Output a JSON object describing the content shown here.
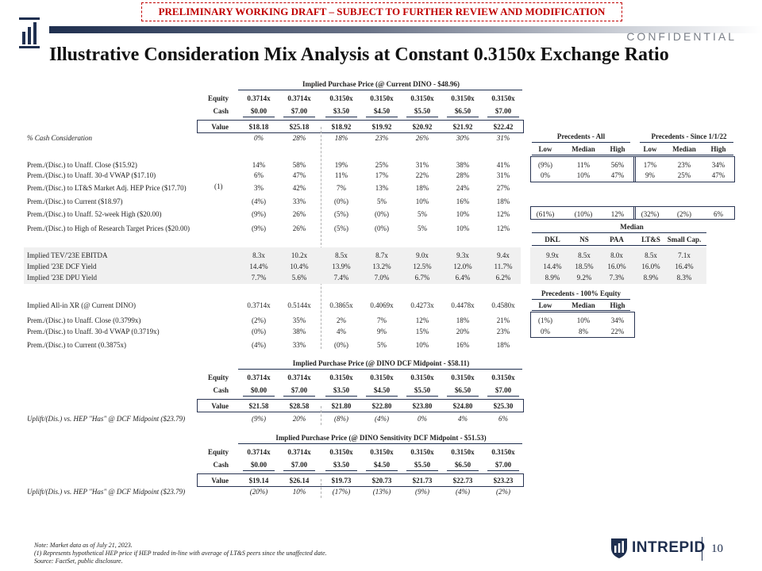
{
  "draft_banner": "PRELIMINARY WORKING DRAFT – SUBJECT TO FURTHER REVIEW AND MODIFICATION",
  "confidential": "CONFIDENTIAL",
  "title": "Illustrative Consideration Mix Analysis at Constant 0.3150x Exchange Ratio",
  "brand": "INTREPID",
  "page_number": "10",
  "colors": {
    "navy": "#1f2f4f",
    "draft_red": "#c00000"
  },
  "icons": {
    "logo": "intrepid-bars-logo",
    "brand": "intrepid-shield-logo"
  },
  "footnote": {
    "reference": "(1)",
    "lines": [
      "Note: Market data as of July 21, 2023.",
      "(1)      Represents hypothetical HEP price if HEP traded in-line with average of LT&S peers since the unaffected date.",
      "Source: FactSet, public disclosure."
    ]
  },
  "section1": {
    "header": "Implied Purchase Price (@ Current DINO - $48.96)",
    "equity_label": "Equity",
    "equity": [
      "0.3714x",
      "0.3714x",
      "0.3150x",
      "0.3150x",
      "0.3150x",
      "0.3150x",
      "0.3150x"
    ],
    "cash_label": "Cash",
    "cash": [
      "$0.00",
      "$7.00",
      "$3.50",
      "$4.50",
      "$5.50",
      "$6.50",
      "$7.00"
    ],
    "value_label": "Value",
    "value": [
      "$18.18",
      "$25.18",
      "$18.92",
      "$19.92",
      "$20.92",
      "$21.92",
      "$22.42"
    ]
  },
  "rows_a": [
    {
      "label": "% Cash Consideration",
      "values": [
        "0%",
        "28%",
        "18%",
        "23%",
        "26%",
        "30%",
        "31%"
      ],
      "italic": true
    },
    {
      "label": "Prem./(Disc.) to Unaff. Close ($15.92)",
      "values": [
        "14%",
        "58%",
        "19%",
        "25%",
        "31%",
        "38%",
        "41%"
      ]
    },
    {
      "label": "Prem./(Disc.) to Unaff. 30-d VWAP ($17.10)",
      "values": [
        "6%",
        "47%",
        "11%",
        "17%",
        "22%",
        "28%",
        "31%"
      ]
    },
    {
      "label": "Prem./(Disc.) to LT&S Market Adj. HEP Price ($17.70)",
      "values": [
        "3%",
        "42%",
        "7%",
        "13%",
        "18%",
        "24%",
        "27%"
      ]
    },
    {
      "label": "Prem./(Disc.) to Current ($18.97)",
      "values": [
        "(4%)",
        "33%",
        "(0%)",
        "5%",
        "10%",
        "16%",
        "18%"
      ]
    },
    {
      "label": "Prem./(Disc.) to Unaff. 52-week High ($20.00)",
      "values": [
        "(9%)",
        "26%",
        "(5%)",
        "(0%)",
        "5%",
        "10%",
        "12%"
      ]
    },
    {
      "label": "Prem./(Disc.) to High of Research Target Prices ($20.00)",
      "values": [
        "(9%)",
        "26%",
        "(5%)",
        "(0%)",
        "5%",
        "10%",
        "12%"
      ]
    }
  ],
  "precedents": {
    "all_header": "Precedents - All",
    "since_header": "Precedents - Since 1/1/22",
    "cols": [
      "Low",
      "Median",
      "High",
      "Low",
      "Median",
      "High"
    ],
    "rows": [
      [
        "(9%)",
        "11%",
        "56%",
        "17%",
        "23%",
        "34%"
      ],
      [
        "0%",
        "10%",
        "47%",
        "9%",
        "25%",
        "47%"
      ]
    ],
    "high52": [
      "(61%)",
      "(10%)",
      "12%",
      "(32%)",
      "(2%)",
      "6%"
    ]
  },
  "peers": {
    "median_header": "Median",
    "cols": [
      "DKL",
      "NS",
      "PAA",
      "LT&S",
      "Small Cap."
    ],
    "rows": [
      [
        "9.9x",
        "8.5x",
        "8.0x",
        "8.5x",
        "7.1x"
      ],
      [
        "14.4%",
        "18.5%",
        "16.0%",
        "16.0%",
        "16.4%"
      ],
      [
        "8.9%",
        "9.2%",
        "7.3%",
        "8.9%",
        "8.3%"
      ]
    ]
  },
  "rows_b": [
    {
      "label": "Implied TEV/'23E EBITDA",
      "values": [
        "8.3x",
        "10.2x",
        "8.5x",
        "8.7x",
        "9.0x",
        "9.3x",
        "9.4x"
      ]
    },
    {
      "label": "Implied '23E DCF Yield",
      "values": [
        "14.4%",
        "10.4%",
        "13.9%",
        "13.2%",
        "12.5%",
        "12.0%",
        "11.7%"
      ]
    },
    {
      "label": "Implied '23E DPU Yield",
      "values": [
        "7.7%",
        "5.6%",
        "7.4%",
        "7.0%",
        "6.7%",
        "6.4%",
        "6.2%"
      ]
    }
  ],
  "precedents_equity": {
    "header": "Precedents - 100% Equity",
    "cols": [
      "Low",
      "Median",
      "High"
    ],
    "rows": [
      [
        "(1%)",
        "10%",
        "34%"
      ],
      [
        "0%",
        "8%",
        "22%"
      ]
    ]
  },
  "rows_c": [
    {
      "label": "Implied All-in XR (@ Current DINO)",
      "values": [
        "0.3714x",
        "0.5144x",
        "0.3865x",
        "0.4069x",
        "0.4273x",
        "0.4478x",
        "0.4580x"
      ]
    },
    {
      "label": "Prem./(Disc.) to Unaff. Close (0.3799x)",
      "values": [
        "(2%)",
        "35%",
        "2%",
        "7%",
        "12%",
        "18%",
        "21%"
      ]
    },
    {
      "label": "Prem./(Disc.) to Unaff. 30-d VWAP (0.3719x)",
      "values": [
        "(0%)",
        "38%",
        "4%",
        "9%",
        "15%",
        "20%",
        "23%"
      ]
    },
    {
      "label": "Prem./(Disc.) to Current (0.3875x)",
      "values": [
        "(4%)",
        "33%",
        "(0%)",
        "5%",
        "10%",
        "16%",
        "18%"
      ]
    }
  ],
  "section2": {
    "header": "Implied Purchase Price (@ DINO DCF Midpoint - $58.11)",
    "equity_label": "Equity",
    "equity": [
      "0.3714x",
      "0.3714x",
      "0.3150x",
      "0.3150x",
      "0.3150x",
      "0.3150x",
      "0.3150x"
    ],
    "cash_label": "Cash",
    "cash": [
      "$0.00",
      "$7.00",
      "$3.50",
      "$4.50",
      "$5.50",
      "$6.50",
      "$7.00"
    ],
    "value_label": "Value",
    "value": [
      "$21.58",
      "$28.58",
      "$21.80",
      "$22.80",
      "$23.80",
      "$24.80",
      "$25.30"
    ],
    "uplift_label": "Uplift/(Dis.) vs. HEP \"Has\" @ DCF Midpoint ($23.79)",
    "uplift": [
      "(9%)",
      "20%",
      "(8%)",
      "(4%)",
      "0%",
      "4%",
      "6%"
    ]
  },
  "section3": {
    "header": "Implied Purchase Price (@ DINO Sensitivity DCF Midpoint - $51.53)",
    "equity_label": "Equity",
    "equity": [
      "0.3714x",
      "0.3714x",
      "0.3150x",
      "0.3150x",
      "0.3150x",
      "0.3150x",
      "0.3150x"
    ],
    "cash_label": "Cash",
    "cash": [
      "$0.00",
      "$7.00",
      "$3.50",
      "$4.50",
      "$5.50",
      "$6.50",
      "$7.00"
    ],
    "value_label": "Value",
    "value": [
      "$19.14",
      "$26.14",
      "$19.73",
      "$20.73",
      "$21.73",
      "$22.73",
      "$23.23"
    ],
    "uplift_label": "Uplift/(Dis.) vs. HEP \"Has\" @ DCF Midpoint ($23.79)",
    "uplift": [
      "(20%)",
      "10%",
      "(17%)",
      "(13%)",
      "(9%)",
      "(4%)",
      "(2%)"
    ]
  }
}
